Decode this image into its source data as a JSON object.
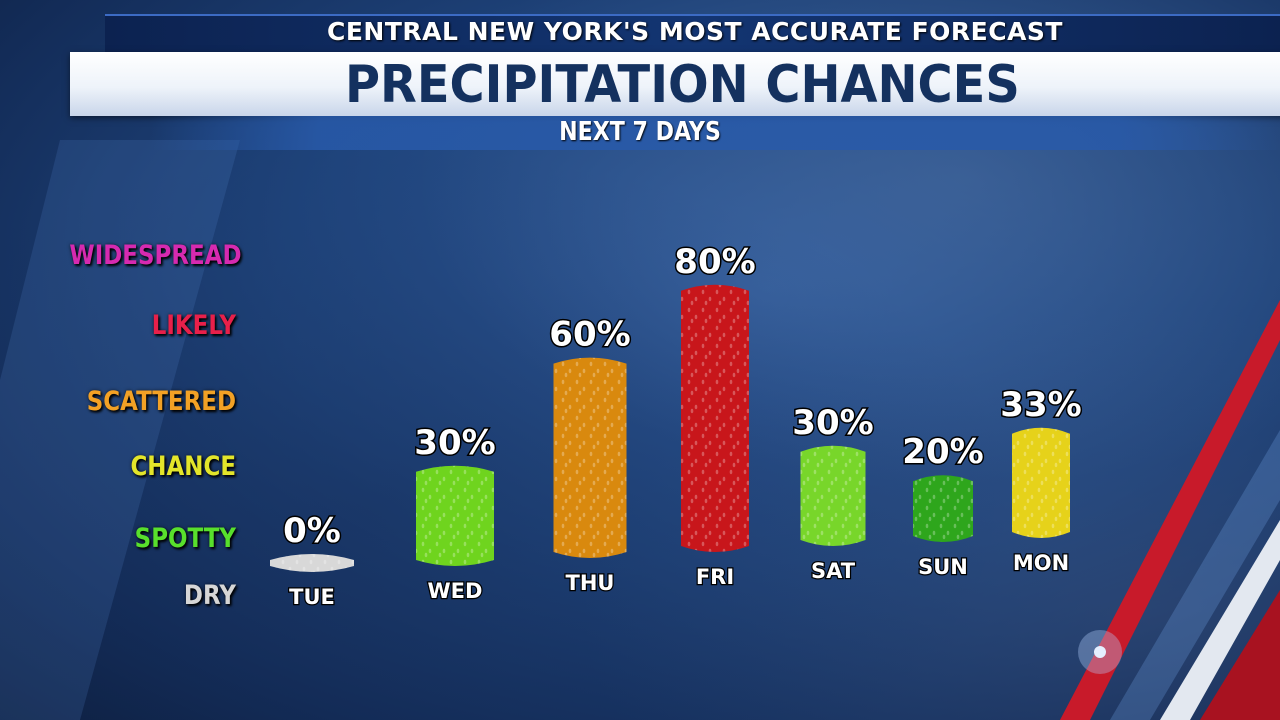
{
  "header": {
    "banner": "CENTRAL NEW YORK'S MOST ACCURATE FORECAST",
    "title": "PRECIPITATION CHANCES",
    "subtitle": "NEXT 7 DAYS"
  },
  "scale": [
    {
      "label": "WIDESPREAD",
      "color": "#d62ab0"
    },
    {
      "label": "LIKELY",
      "color": "#e8204a"
    },
    {
      "label": "SCATTERED",
      "color": "#f2a125"
    },
    {
      "label": "CHANCE",
      "color": "#e3e52a"
    },
    {
      "label": "SPOTTY",
      "color": "#58e02c"
    },
    {
      "label": "DRY",
      "color": "#d6d6d6"
    }
  ],
  "chart_data": {
    "type": "bar",
    "title": "PRECIPITATION CHANCES",
    "subtitle": "NEXT 7 DAYS",
    "categories": [
      "TUE",
      "WED",
      "THU",
      "FRI",
      "SAT",
      "SUN",
      "MON"
    ],
    "values": [
      0,
      30,
      60,
      80,
      30,
      20,
      33
    ],
    "value_labels": [
      "0%",
      "30%",
      "60%",
      "80%",
      "30%",
      "20%",
      "33%"
    ],
    "bar_colors": [
      "#d8d8d8",
      "#6fd41e",
      "#d9890e",
      "#c8161b",
      "#78d62a",
      "#2ea61c",
      "#e6d21a"
    ],
    "ylim": [
      0,
      100
    ],
    "grid": false,
    "legend": "none"
  }
}
